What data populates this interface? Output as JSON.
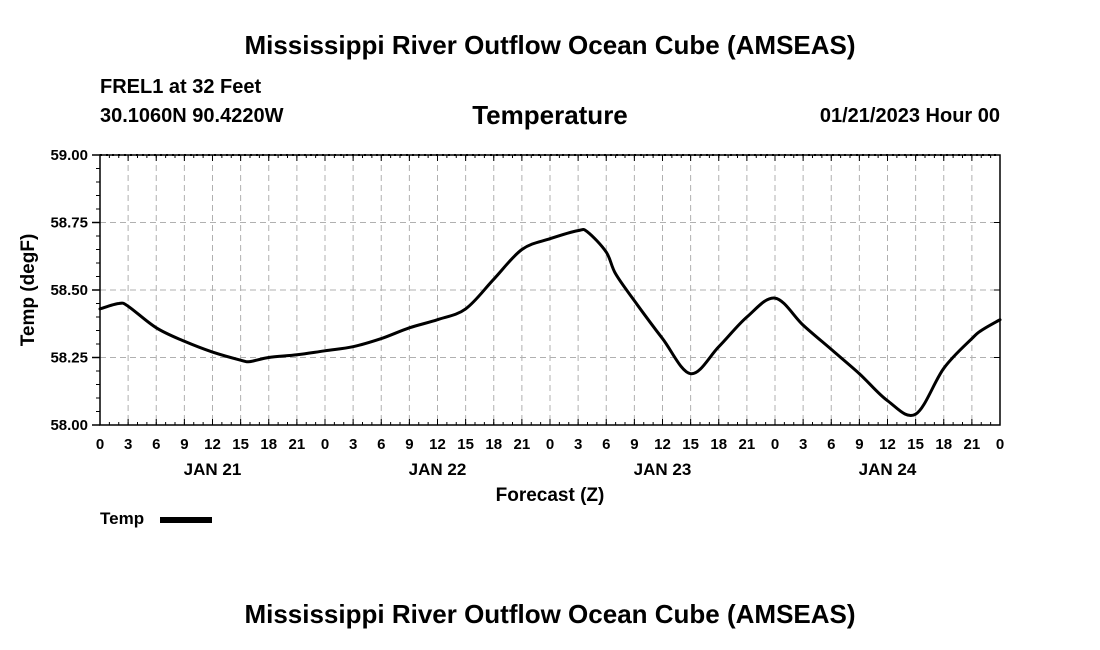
{
  "title_top": "Mississippi River Outflow Ocean Cube (AMSEAS)",
  "title_bottom": "Mississippi River Outflow Ocean Cube (AMSEAS)",
  "station": "FREL1 at 32 Feet",
  "coords": "30.1060N  90.4220W",
  "datetime": "01/21/2023 Hour 00",
  "chart_data": {
    "type": "line",
    "title": "Temperature",
    "xlabel": "Forecast (Z)",
    "ylabel": "Temp (degF)",
    "ylim": [
      58.0,
      59.0
    ],
    "xlim_hours": [
      0,
      96
    ],
    "yticks": [
      "58.00",
      "58.25",
      "58.50",
      "58.75",
      "59.00"
    ],
    "xtick_labels": [
      "0",
      "3",
      "6",
      "9",
      "12",
      "15",
      "18",
      "21",
      "0",
      "3",
      "6",
      "9",
      "12",
      "15",
      "18",
      "21",
      "0",
      "3",
      "6",
      "9",
      "12",
      "15",
      "18",
      "21",
      "0",
      "3",
      "6",
      "9",
      "12",
      "15",
      "18",
      "21",
      "0"
    ],
    "day_labels": [
      "JAN 21",
      "JAN 22",
      "JAN 23",
      "JAN 24"
    ],
    "grid": true,
    "legend": "bottom-left",
    "series": [
      {
        "name": "Temp",
        "color": "#000000",
        "x": [
          0,
          2,
          3,
          6,
          9,
          12,
          15,
          16,
          18,
          21,
          24,
          27,
          30,
          33,
          36,
          39,
          42,
          45,
          48,
          51,
          52,
          54,
          55,
          57,
          60,
          63,
          66,
          69,
          72,
          75,
          78,
          81,
          84,
          87,
          90,
          93,
          94,
          96
        ],
        "y": [
          58.43,
          58.45,
          58.44,
          58.36,
          58.31,
          58.27,
          58.24,
          58.235,
          58.25,
          58.26,
          58.275,
          58.29,
          58.32,
          58.36,
          58.39,
          58.43,
          58.54,
          58.65,
          58.69,
          58.72,
          58.715,
          58.64,
          58.56,
          58.46,
          58.32,
          58.19,
          58.29,
          58.4,
          58.47,
          58.37,
          58.28,
          58.19,
          58.09,
          58.04,
          58.21,
          58.32,
          58.35,
          58.39
        ]
      }
    ]
  }
}
